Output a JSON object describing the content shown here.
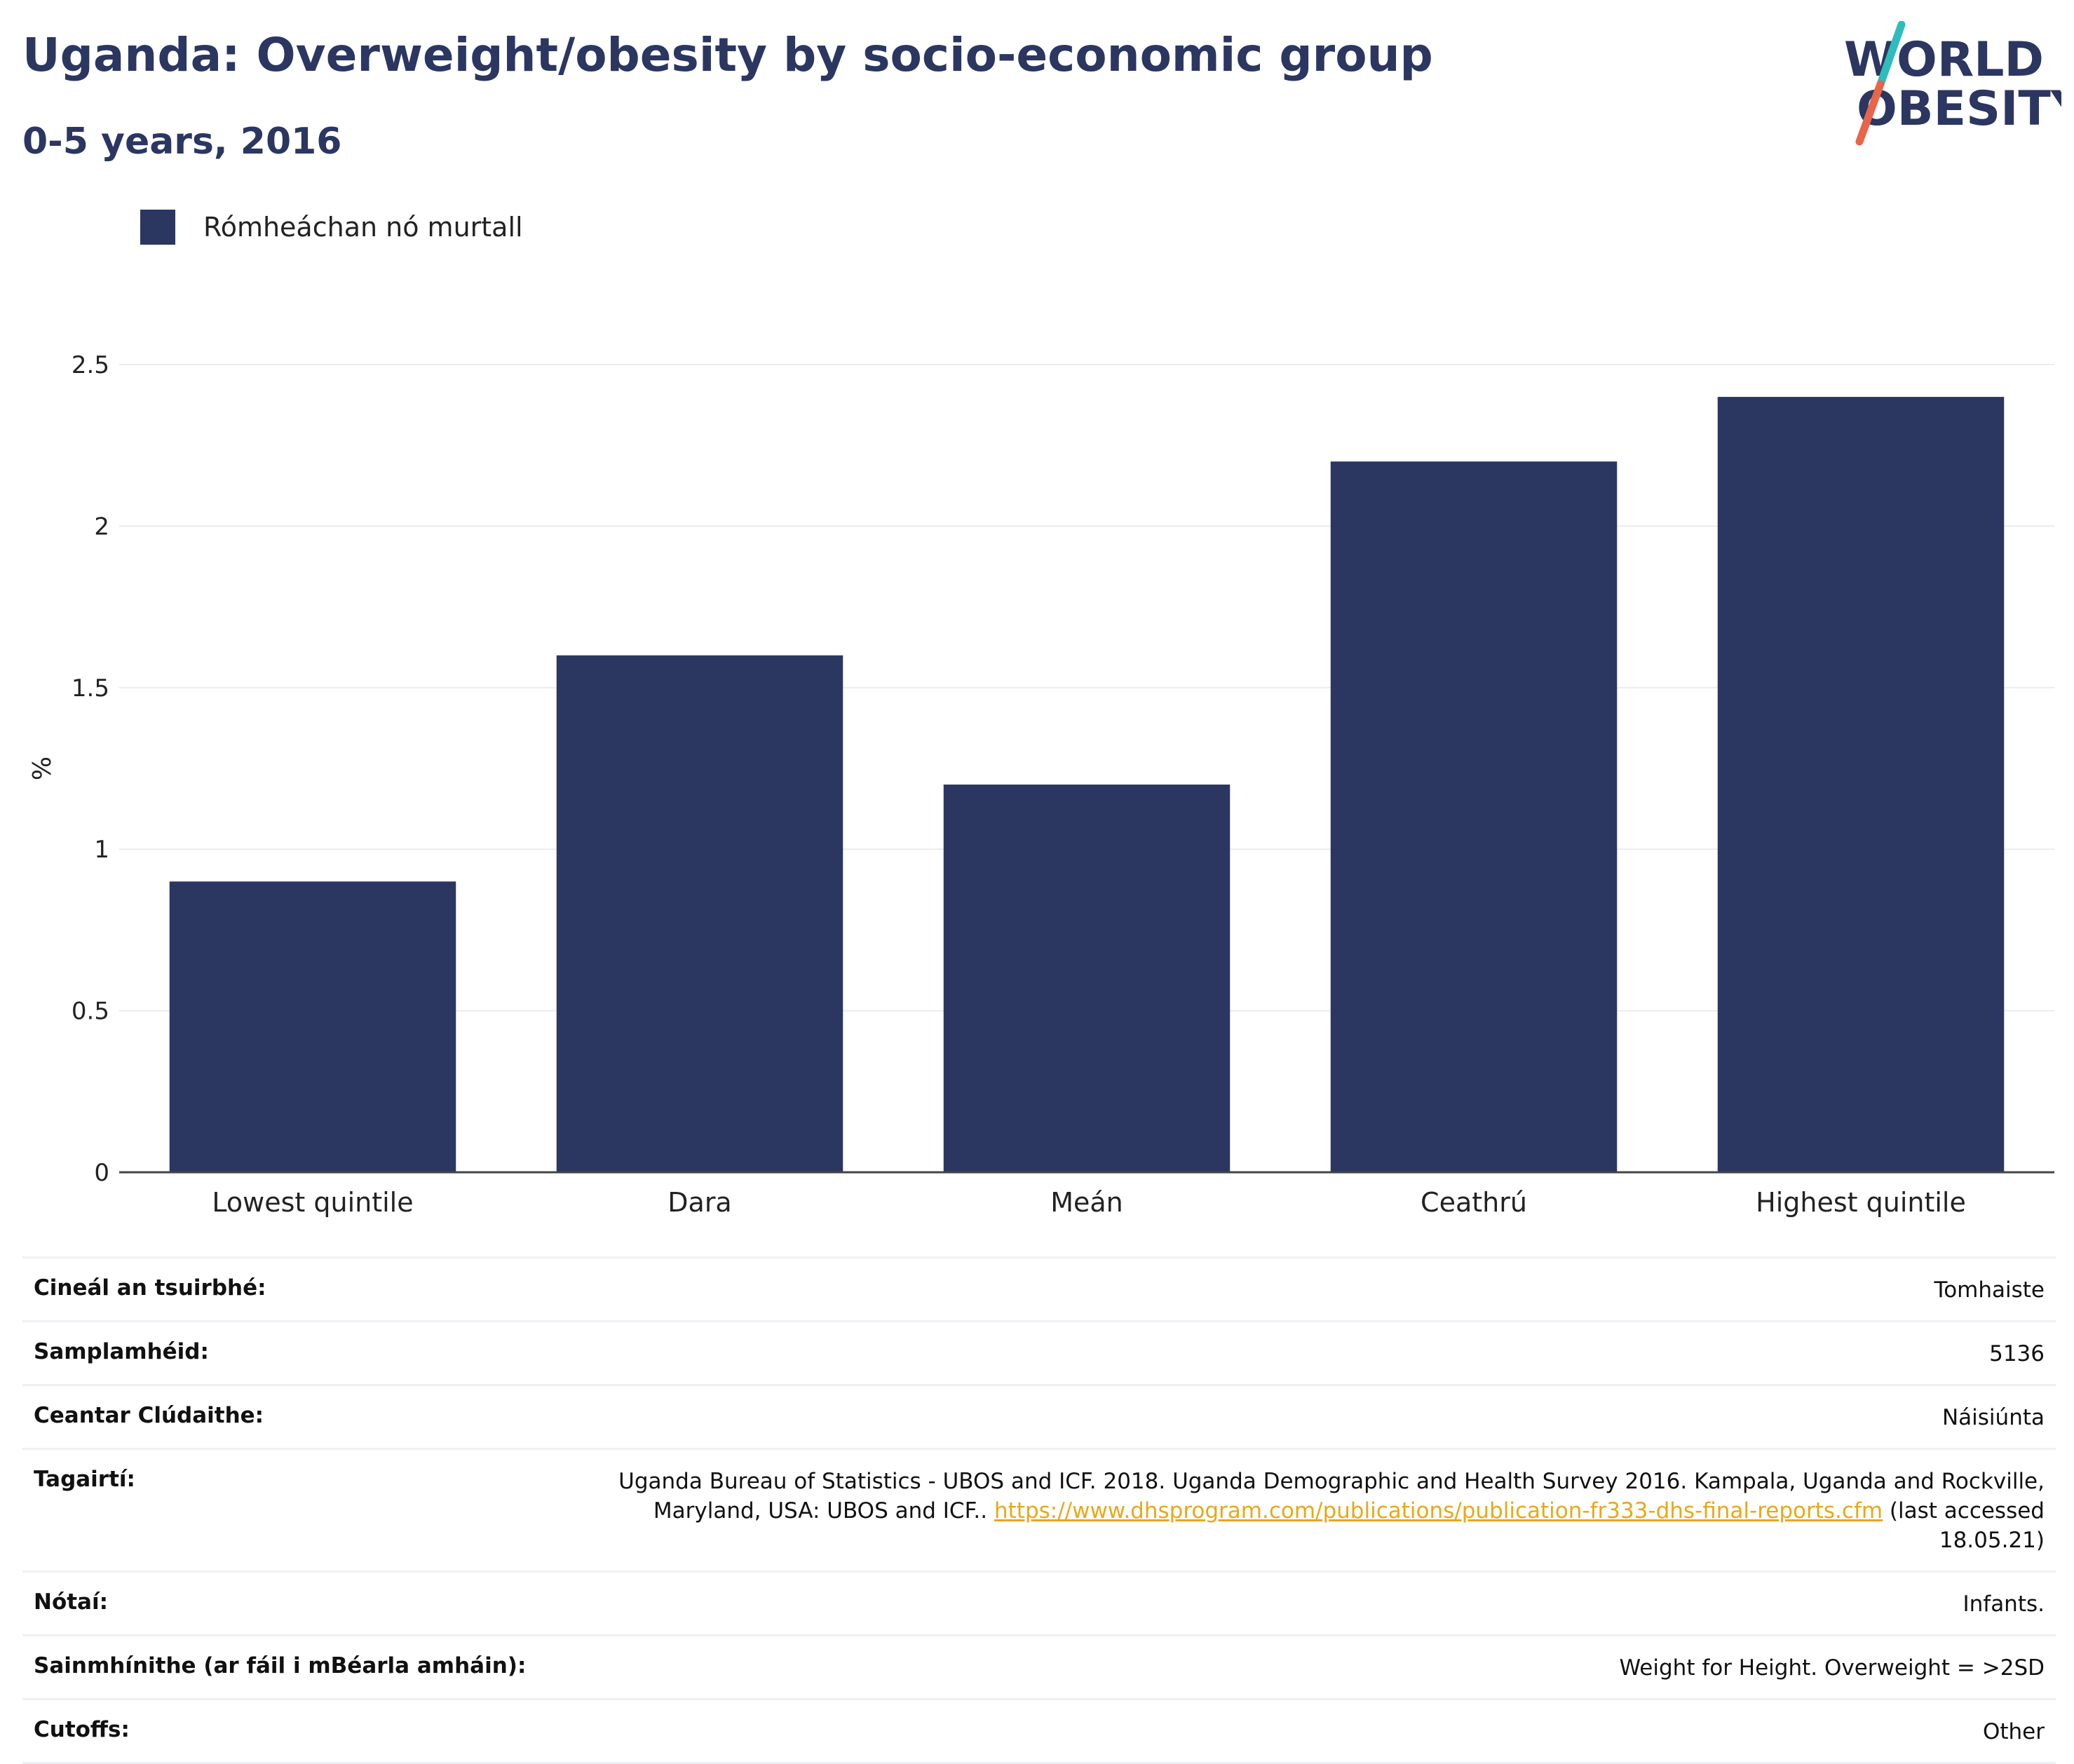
{
  "title": "Uganda: Overweight/obesity by socio-economic group",
  "subtitle": "0-5 years, 2016",
  "logo": {
    "line1": "WORLD",
    "line2": "OBESITY",
    "accent_top": "#2fbcbc",
    "accent_bottom": "#e8644a"
  },
  "legend": {
    "label": "Rómheáchan nó murtall",
    "color": "#2b3661"
  },
  "chart_data": {
    "type": "bar",
    "categories": [
      "Lowest quintile",
      "Dara",
      "Meán",
      "Ceathrú",
      "Highest quintile"
    ],
    "series": [
      {
        "name": "Rómheáchan nó murtall",
        "values": [
          0.9,
          1.6,
          1.2,
          2.2,
          2.4
        ],
        "color": "#2b3661"
      }
    ],
    "ylabel": "%",
    "ylim": [
      0,
      2.5
    ],
    "yticks": [
      0,
      0.5,
      1,
      1.5,
      2,
      2.5
    ],
    "ytick_labels": [
      "0",
      "0.5",
      "1",
      "1.5",
      "2",
      "2.5"
    ],
    "grid": true,
    "legend_position": "top-left"
  },
  "meta": {
    "survey_type": {
      "label": "Cineál an tsuirbhé:",
      "value": "Tomhaiste"
    },
    "sample_size": {
      "label": "Samplamhéid:",
      "value": "5136"
    },
    "coverage": {
      "label": "Ceantar Clúdaithe:",
      "value": "Náisiúnta"
    },
    "references": {
      "label": "Tagairtí:",
      "text_before": "Uganda Bureau of Statistics - UBOS and ICF. 2018. Uganda Demographic and Health Survey 2016. Kampala, Uganda and Rockville, Maryland, USA: UBOS and ICF.. ",
      "link": "https://www.dhsprogram.com/publications/publication-fr333-dhs-final-reports.cfm",
      "text_after": " (last accessed 18.05.21)"
    },
    "notes": {
      "label": "Nótaí:",
      "value": "Infants."
    },
    "definitions": {
      "label": "Sainmhínithe (ar fáil i mBéarla amháin):",
      "value": "Weight for Height. Overweight = >2SD"
    },
    "cutoffs": {
      "label": "Cutoffs:",
      "value": "Other"
    }
  }
}
